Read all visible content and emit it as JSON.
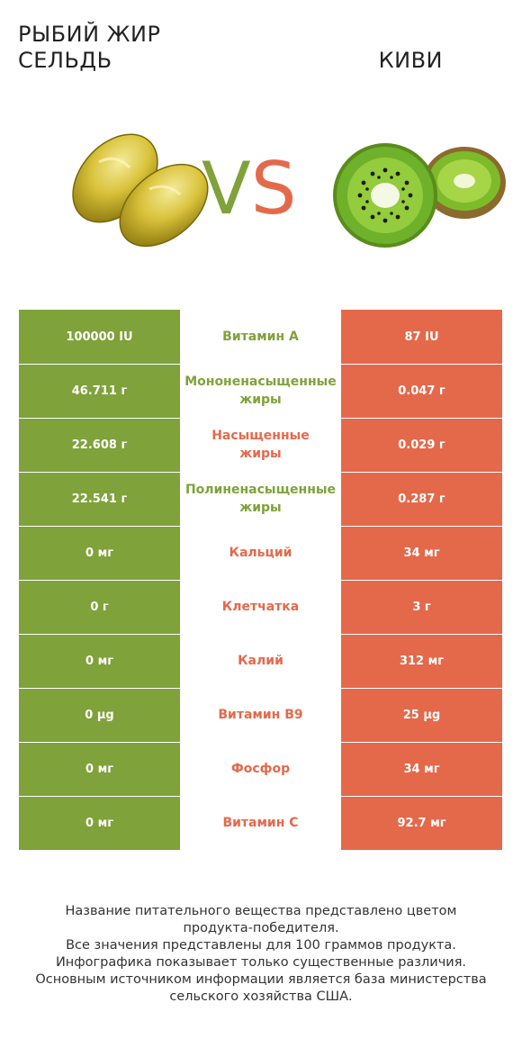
{
  "header": {
    "left_title": "РЫБИЙ ЖИР\nСЕЛЬДЬ",
    "right_title": "КИВИ",
    "vs_v": "V",
    "vs_s": "S"
  },
  "colors": {
    "left_product": "#7fa23a",
    "right_product": "#e4694b"
  },
  "rows": [
    {
      "left": "100000 IU",
      "nutrient": "Витамин A",
      "right": "87 IU",
      "winner": "left"
    },
    {
      "left": "46.711 г",
      "nutrient": "Мононенасыщенные\nжиры",
      "right": "0.047 г",
      "winner": "left"
    },
    {
      "left": "22.608 г",
      "nutrient": "Насыщенные\nжиры",
      "right": "0.029 г",
      "winner": "right"
    },
    {
      "left": "22.541 г",
      "nutrient": "Полиненасыщенные\nжиры",
      "right": "0.287 г",
      "winner": "left"
    },
    {
      "left": "0 мг",
      "nutrient": "Кальций",
      "right": "34 мг",
      "winner": "right"
    },
    {
      "left": "0 г",
      "nutrient": "Клетчатка",
      "right": "3 г",
      "winner": "right"
    },
    {
      "left": "0 мг",
      "nutrient": "Калий",
      "right": "312 мг",
      "winner": "right"
    },
    {
      "left": "0 µg",
      "nutrient": "Витамин B9",
      "right": "25 µg",
      "winner": "right"
    },
    {
      "left": "0 мг",
      "nutrient": "Фосфор",
      "right": "34 мг",
      "winner": "right"
    },
    {
      "left": "0 мг",
      "nutrient": "Витамин C",
      "right": "92.7 мг",
      "winner": "right"
    }
  ],
  "footer": {
    "text": "Название питательного вещества представлено цветом\nпродукта-победителя.\nВсе значения представлены для 100 граммов продукта.\nИнфографика показывает только существенные различия.\nОсновным источником информации является база министерства\nсельского хозяйства США."
  },
  "icons": {
    "left_image": "fish-oil-capsules-icon",
    "right_image": "kiwi-fruit-icon"
  }
}
